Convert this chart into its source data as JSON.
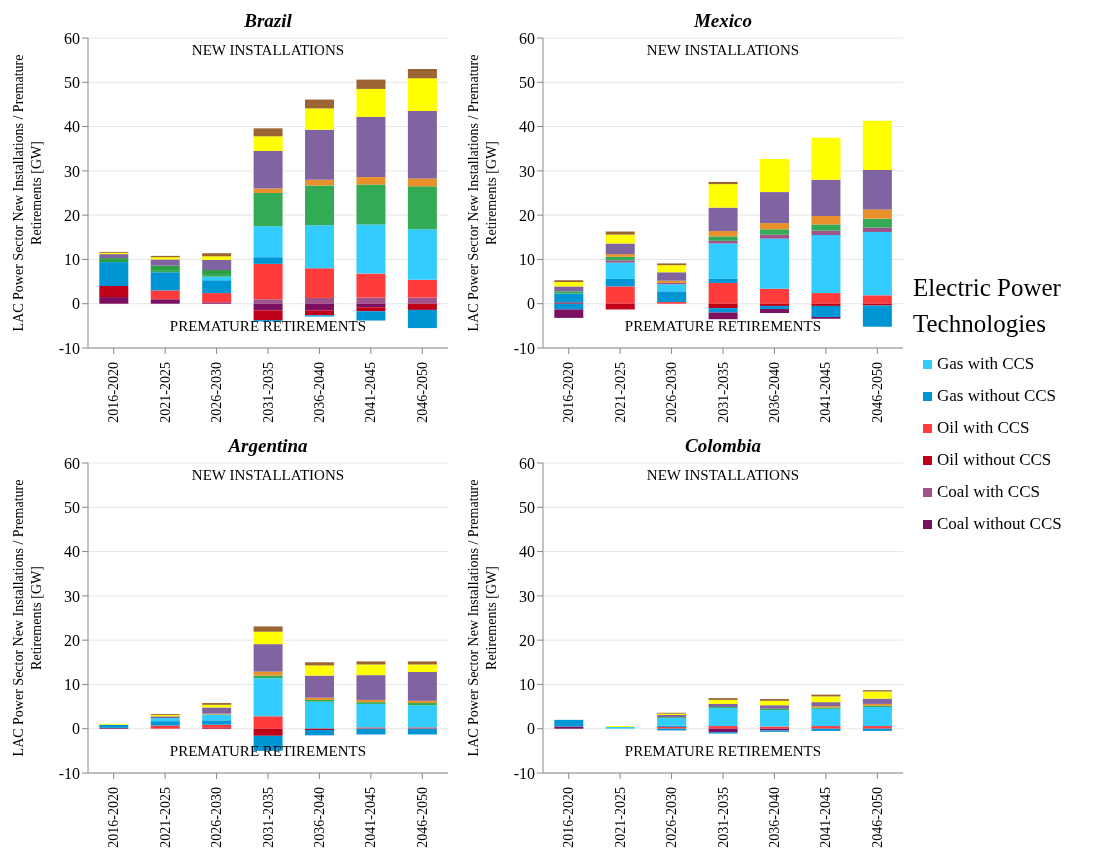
{
  "chart_data": [
    {
      "type": "bar",
      "title": "Brazil",
      "ylabel": "LAC Power Sector New Installations / Premature Retirements [GW]",
      "annotations": [
        "NEW INSTALLATIONS",
        "PREMATURE RETIREMENTS"
      ],
      "legend_title": "Electric Power Technologies",
      "legend": "right",
      "stacked": true,
      "grid": "y",
      "ylim": [
        -10,
        60
      ],
      "yticks": [
        -10,
        0,
        10,
        20,
        30,
        40,
        50,
        60
      ],
      "categories": [
        "2016-2020",
        "2021-2025",
        "2026-2030",
        "2031-2035",
        "2036-2040",
        "2041-2045",
        "2046-2050"
      ],
      "series": [
        {
          "name": "Coal without CCS",
          "color": "#7b1060",
          "values": [
            1.5,
            1.0,
            0.3,
            null,
            null,
            null,
            null
          ]
        },
        {
          "name": "Coal with CCS",
          "color": "#a0528a",
          "values": [
            null,
            null,
            null,
            1.0,
            1.3,
            1.4,
            1.4
          ]
        },
        {
          "name": "Oil without CCS",
          "color": "#c00018",
          "values": [
            2.5,
            null,
            null,
            null,
            null,
            null,
            null
          ]
        },
        {
          "name": "Oil with CCS",
          "color": "#ff3b3b",
          "values": [
            null,
            2.0,
            2.1,
            8.0,
            6.7,
            5.4,
            4.0
          ]
        },
        {
          "name": "Gas without CCS",
          "color": "#0096d6",
          "values": [
            5.4,
            4.1,
            2.9,
            1.5,
            null,
            null,
            null
          ]
        },
        {
          "name": "Gas with CCS",
          "color": "#33ccff",
          "values": [
            null,
            null,
            0.8,
            7.0,
            9.7,
            11.1,
            11.4
          ]
        },
        {
          "color": "#33aa55",
          "values": [
            null,
            0.5,
            0.6,
            7.5,
            9.0,
            9.0,
            9.7
          ]
        },
        {
          "color": "#2e9e44",
          "values": [
            0.9,
            1.0,
            0.9,
            null,
            null,
            null,
            null
          ]
        },
        {
          "color": "#e8902a",
          "values": [
            null,
            null,
            null,
            1.0,
            1.3,
            1.7,
            1.8
          ]
        },
        {
          "color": "#8064a2",
          "values": [
            0.9,
            1.4,
            2.3,
            8.5,
            11.3,
            13.6,
            15.2
          ]
        },
        {
          "color": "#ffff00",
          "values": [
            0.3,
            0.5,
            0.8,
            3.3,
            4.8,
            6.3,
            7.4
          ]
        },
        {
          "color": "#9a6433",
          "values": [
            0.2,
            0.3,
            0.7,
            1.8,
            2.0,
            2.1,
            2.1
          ]
        },
        {
          "color": "#7b1060",
          "values": [
            null,
            null,
            null,
            -1.5,
            -1.5,
            -0.8,
            null
          ]
        },
        {
          "color": "#c00018",
          "values": [
            null,
            null,
            null,
            -2.2,
            -1.1,
            -0.9,
            -1.4
          ]
        },
        {
          "color": "#0096d6",
          "values": [
            null,
            null,
            null,
            -0.3,
            -0.3,
            -2.1,
            -4.1
          ]
        }
      ]
    },
    {
      "type": "bar",
      "title": "Mexico",
      "ylabel": "LAC Power Sector New Installations / Premature Retirements [GW]",
      "annotations": [
        "NEW INSTALLATIONS",
        "PREMATURE RETIREMENTS"
      ],
      "stacked": true,
      "grid": "y",
      "ylim": [
        -10,
        60
      ],
      "yticks": [
        -10,
        0,
        10,
        20,
        30,
        40,
        50,
        60
      ],
      "categories": [
        "2016-2020",
        "2021-2025",
        "2026-2030",
        "2031-2035",
        "2036-2040",
        "2041-2045",
        "2046-2050"
      ],
      "series": [
        {
          "color": "#c00018",
          "values": [
            0.3,
            null,
            null,
            null,
            null,
            null,
            null
          ]
        },
        {
          "color": "#ff3b3b",
          "values": [
            null,
            3.9,
            0.4,
            4.7,
            3.4,
            2.4,
            1.9
          ]
        },
        {
          "color": "#0096d6",
          "values": [
            2.0,
            1.7,
            2.4,
            1.0,
            null,
            null,
            null
          ]
        },
        {
          "color": "#33ccff",
          "values": [
            null,
            3.7,
            1.6,
            7.9,
            11.3,
            13.1,
            14.3
          ]
        },
        {
          "color": "#a0528a",
          "values": [
            null,
            0.5,
            0.3,
            0.6,
            0.9,
            1.0,
            1.0
          ]
        },
        {
          "color": "#33aa55",
          "values": [
            0.5,
            0.8,
            null,
            1.0,
            1.2,
            1.4,
            2.0
          ]
        },
        {
          "color": "#e8902a",
          "values": [
            null,
            0.6,
            0.5,
            1.2,
            1.4,
            1.9,
            2.1
          ]
        },
        {
          "color": "#8064a2",
          "values": [
            1.1,
            2.4,
            1.9,
            5.3,
            7.0,
            8.2,
            8.9
          ]
        },
        {
          "color": "#ffff00",
          "values": [
            1.0,
            2.0,
            1.6,
            5.3,
            7.5,
            9.5,
            11.1
          ]
        },
        {
          "color": "#9a6433",
          "values": [
            0.4,
            0.7,
            0.4,
            0.5,
            null,
            null,
            null
          ]
        },
        {
          "color": "#c00018",
          "values": [
            null,
            -1.3,
            null,
            -1.0,
            -0.5,
            -0.5,
            -0.4
          ]
        },
        {
          "color": "#0096d6",
          "values": [
            -1.3,
            null,
            null,
            -1.0,
            -0.7,
            -2.5,
            -4.8
          ]
        },
        {
          "color": "#7b1060",
          "values": [
            -1.9,
            null,
            null,
            -1.5,
            -0.9,
            -0.4,
            null
          ]
        }
      ]
    },
    {
      "type": "bar",
      "title": "Argentina",
      "ylabel": "LAC Power Sector New Installations / Premature Retirements [GW]",
      "annotations": [
        "NEW INSTALLATIONS",
        "PREMATURE RETIREMENTS"
      ],
      "stacked": true,
      "grid": "y",
      "ylim": [
        -10,
        60
      ],
      "yticks": [
        -10,
        0,
        10,
        20,
        30,
        40,
        50,
        60
      ],
      "categories": [
        "2016-2020",
        "2021-2025",
        "2026-2030",
        "2031-2035",
        "2036-2040",
        "2041-2045",
        "2046-2050"
      ],
      "series": [
        {
          "color": "#7b1060",
          "values": [
            0.2,
            null,
            null,
            null,
            null,
            null,
            null
          ]
        },
        {
          "color": "#c00018",
          "values": [
            null,
            null,
            0.3,
            null,
            null,
            null,
            null
          ]
        },
        {
          "color": "#ff3b3b",
          "values": [
            null,
            0.7,
            0.6,
            2.8,
            null,
            0.3,
            0.3
          ]
        },
        {
          "color": "#0096d6",
          "values": [
            0.7,
            1.0,
            1.0,
            null,
            null,
            null,
            null
          ]
        },
        {
          "color": "#33ccff",
          "values": [
            null,
            0.7,
            1.3,
            8.6,
            6.1,
            5.3,
            5.0
          ]
        },
        {
          "color": "#33aa55",
          "values": [
            null,
            null,
            null,
            0.6,
            0.4,
            0.4,
            0.5
          ]
        },
        {
          "color": "#e8902a",
          "values": [
            null,
            null,
            0.2,
            0.9,
            0.5,
            0.5,
            0.5
          ]
        },
        {
          "color": "#8064a2",
          "values": [
            null,
            0.4,
            1.4,
            6.2,
            5.0,
            5.6,
            6.5
          ]
        },
        {
          "color": "#ffff00",
          "values": [
            0.2,
            0.3,
            0.6,
            2.8,
            2.3,
            2.4,
            1.7
          ]
        },
        {
          "color": "#9a6433",
          "values": [
            null,
            0.2,
            0.4,
            1.2,
            0.7,
            0.7,
            0.7
          ]
        },
        {
          "color": "#c00018",
          "values": [
            null,
            null,
            null,
            -1.6,
            -0.3,
            null,
            null
          ]
        },
        {
          "color": "#0096d6",
          "values": [
            null,
            null,
            null,
            -3.4,
            -1.2,
            -1.3,
            -1.3
          ]
        }
      ]
    },
    {
      "type": "bar",
      "title": "Colombia",
      "ylabel": "LAC Power Sector New Installations / Premature Retirements [GW]",
      "annotations": [
        "NEW INSTALLATIONS",
        "PREMATURE RETIREMENTS"
      ],
      "stacked": true,
      "grid": "y",
      "ylim": [
        -10,
        60
      ],
      "yticks": [
        -10,
        0,
        10,
        20,
        30,
        40,
        50,
        60
      ],
      "categories": [
        "2016-2020",
        "2021-2025",
        "2026-2030",
        "2031-2035",
        "2036-2040",
        "2041-2045",
        "2046-2050"
      ],
      "series": [
        {
          "color": "#7b1060",
          "values": [
            0.5,
            null,
            null,
            null,
            null,
            null,
            null
          ]
        },
        {
          "color": "#ff3b3b",
          "values": [
            null,
            null,
            0.4,
            0.6,
            0.5,
            0.6,
            0.6
          ]
        },
        {
          "color": "#0096d6",
          "values": [
            1.5,
            null,
            0.3,
            null,
            null,
            null,
            null
          ]
        },
        {
          "color": "#33ccff",
          "values": [
            null,
            0.4,
            1.7,
            4.1,
            3.7,
            3.9,
            4.3
          ]
        },
        {
          "color": "#33aa55",
          "values": [
            null,
            null,
            0.2,
            0.2,
            0.3,
            0.3,
            0.3
          ]
        },
        {
          "color": "#e8902a",
          "values": [
            null,
            null,
            null,
            null,
            null,
            0.3,
            0.4
          ]
        },
        {
          "color": "#8064a2",
          "values": [
            null,
            null,
            0.5,
            0.7,
            0.8,
            0.9,
            1.2
          ]
        },
        {
          "color": "#ffff00",
          "values": [
            null,
            0.2,
            0.3,
            0.9,
            1.0,
            1.3,
            1.6
          ]
        },
        {
          "color": "#9a6433",
          "values": [
            null,
            null,
            0.2,
            0.4,
            0.4,
            0.4,
            0.3
          ]
        },
        {
          "color": "#7b1060",
          "values": [
            null,
            null,
            null,
            -0.8,
            -0.4,
            null,
            null
          ]
        },
        {
          "color": "#0096d6",
          "values": [
            null,
            null,
            -0.4,
            -0.3,
            -0.3,
            -0.5,
            -0.5
          ]
        }
      ]
    }
  ]
}
